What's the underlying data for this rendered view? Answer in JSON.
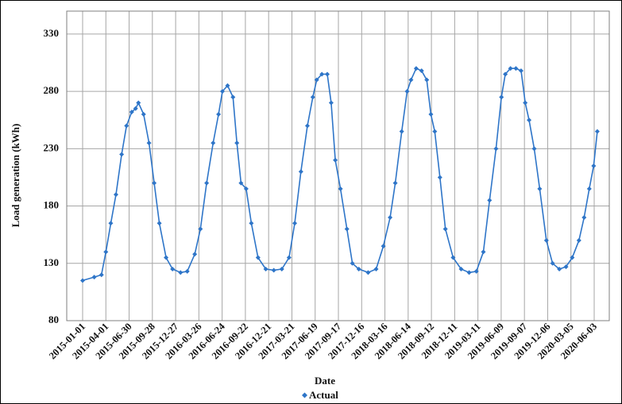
{
  "chart_data": {
    "type": "line",
    "xlabel": "Date",
    "ylabel": "Load generation (kWh)",
    "ylim": [
      80,
      350
    ],
    "y_ticks": [
      80,
      130,
      180,
      230,
      280,
      330
    ],
    "x_range": [
      "2015-01-01",
      "2020-06-20"
    ],
    "x_ticks": [
      "2015-01-01",
      "2015-04-01",
      "2015-06-30",
      "2015-09-28",
      "2015-12-27",
      "2016-03-26",
      "2016-06-24",
      "2016-09-22",
      "2016-12-21",
      "2017-03-21",
      "2017-06-19",
      "2017-09-17",
      "2017-12-16",
      "2018-03-16",
      "2018-06-14",
      "2018-09-12",
      "2018-12-11",
      "2019-03-11",
      "2019-06-09",
      "2019-09-07",
      "2019-12-06",
      "2020-03-05",
      "2020-06-03"
    ],
    "grid": true,
    "legend": "bottom-center",
    "series": [
      {
        "name": "Actual",
        "color": "#2e75c8",
        "marker": "diamond",
        "x": [
          "2015-01-01",
          "2015-02-15",
          "2015-03-15",
          "2015-04-01",
          "2015-04-20",
          "2015-05-10",
          "2015-06-01",
          "2015-06-20",
          "2015-07-10",
          "2015-07-25",
          "2015-08-05",
          "2015-08-25",
          "2015-09-15",
          "2015-10-05",
          "2015-10-25",
          "2015-11-20",
          "2015-12-15",
          "2016-01-15",
          "2016-02-10",
          "2016-03-10",
          "2016-04-01",
          "2016-04-25",
          "2016-05-20",
          "2016-06-10",
          "2016-06-25",
          "2016-07-15",
          "2016-08-05",
          "2016-08-20",
          "2016-09-05",
          "2016-09-25",
          "2016-10-15",
          "2016-11-10",
          "2016-12-10",
          "2017-01-10",
          "2017-02-10",
          "2017-03-10",
          "2017-04-01",
          "2017-04-25",
          "2017-05-20",
          "2017-06-10",
          "2017-06-25",
          "2017-07-15",
          "2017-08-05",
          "2017-08-20",
          "2017-09-05",
          "2017-09-25",
          "2017-10-20",
          "2017-11-10",
          "2017-12-05",
          "2018-01-10",
          "2018-02-10",
          "2018-03-10",
          "2018-04-05",
          "2018-04-25",
          "2018-05-20",
          "2018-06-10",
          "2018-06-25",
          "2018-07-15",
          "2018-08-05",
          "2018-08-25",
          "2018-09-10",
          "2018-09-25",
          "2018-10-15",
          "2018-11-05",
          "2018-12-05",
          "2019-01-05",
          "2019-02-05",
          "2019-03-05",
          "2019-04-01",
          "2019-04-25",
          "2019-05-20",
          "2019-06-10",
          "2019-06-25",
          "2019-07-15",
          "2019-08-05",
          "2019-08-25",
          "2019-09-10",
          "2019-09-25",
          "2019-10-15",
          "2019-11-05",
          "2019-12-01",
          "2019-12-25",
          "2020-01-20",
          "2020-02-15",
          "2020-03-10",
          "2020-04-05",
          "2020-04-25",
          "2020-05-15",
          "2020-06-01",
          "2020-06-15"
        ],
        "values": [
          115,
          118,
          120,
          140,
          165,
          190,
          225,
          250,
          262,
          265,
          270,
          260,
          235,
          200,
          165,
          135,
          125,
          122,
          123,
          138,
          160,
          200,
          235,
          260,
          280,
          285,
          275,
          235,
          200,
          195,
          165,
          135,
          125,
          124,
          125,
          135,
          165,
          210,
          250,
          275,
          290,
          295,
          295,
          270,
          220,
          195,
          160,
          130,
          125,
          122,
          125,
          145,
          170,
          200,
          245,
          280,
          290,
          300,
          298,
          290,
          260,
          245,
          205,
          160,
          135,
          125,
          122,
          123,
          140,
          185,
          230,
          275,
          295,
          300,
          300,
          298,
          270,
          255,
          230,
          195,
          150,
          130,
          125,
          127,
          135,
          150,
          170,
          195,
          215,
          245
        ]
      }
    ]
  }
}
